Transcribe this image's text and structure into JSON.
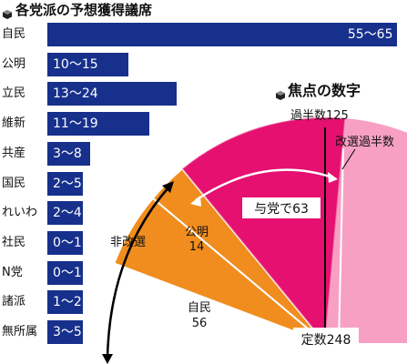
{
  "bars_title": "各党派の予想獲得議席",
  "focus_title": "焦点の数字",
  "colors": {
    "bar": "#17308c",
    "ldp": "#f08d1e",
    "komeito": "#e60f6e",
    "uncontested": "#f7a0c3",
    "contested": "#e2126f",
    "arrow": "#000000"
  },
  "chart_data": [
    {
      "type": "bar",
      "orientation": "horizontal",
      "categories": [
        "自民",
        "公明",
        "立民",
        "維新",
        "共産",
        "国民",
        "れいわ",
        "社民",
        "N党",
        "諸派",
        "無所属"
      ],
      "range_labels": [
        "55〜65",
        "10〜15",
        "13〜24",
        "11〜19",
        "3〜8",
        "2〜5",
        "2〜4",
        "0〜1",
        "0〜1",
        "1〜2",
        "3〜5"
      ],
      "ranges": [
        [
          55,
          65
        ],
        [
          10,
          15
        ],
        [
          13,
          24
        ],
        [
          11,
          19
        ],
        [
          3,
          8
        ],
        [
          2,
          5
        ],
        [
          2,
          4
        ],
        [
          0,
          1
        ],
        [
          0,
          1
        ],
        [
          1,
          2
        ],
        [
          3,
          5
        ]
      ]
    },
    {
      "type": "pie",
      "total": 248,
      "total_label": "定数248",
      "slices": [
        {
          "label": "自民",
          "value": 56
        },
        {
          "label": "公明",
          "value": 14
        },
        {
          "label": "与党で63",
          "value": 63
        }
      ],
      "uncontested_label": "非改選",
      "threshold_label": "過半数125",
      "threshold": 125,
      "contested_majority_label": "改選過半数"
    }
  ]
}
